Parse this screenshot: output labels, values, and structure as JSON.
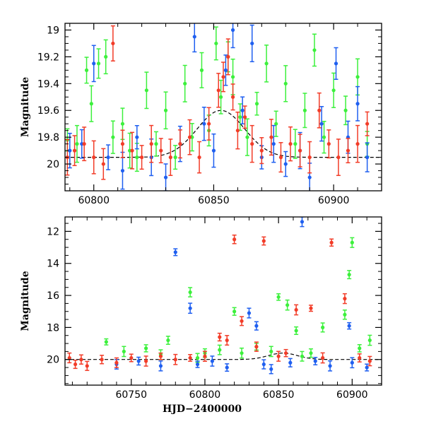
{
  "chart_data": [
    {
      "type": "scatter",
      "title": "",
      "xlabel": "",
      "ylabel": "Magnitude",
      "xlim": [
        60788,
        60920
      ],
      "ylim": [
        20.2,
        18.95
      ],
      "y_inverted": true,
      "xticks": [
        60800,
        60850,
        60900
      ],
      "yticks": [
        19,
        19.2,
        19.4,
        19.6,
        19.8,
        20
      ],
      "grid": false,
      "legend": "none",
      "series": [
        {
          "color": "#3cf03c",
          "marker": "dot with vertical error bar",
          "points": [
            [
              60789,
              19.82
            ],
            [
              60793,
              19.85
            ],
            [
              60797,
              19.3
            ],
            [
              60799,
              19.55
            ],
            [
              60802,
              19.25
            ],
            [
              60805,
              19.2
            ],
            [
              60808,
              19.8
            ],
            [
              60812,
              19.7
            ],
            [
              60815,
              19.9
            ],
            [
              60818,
              19.95
            ],
            [
              60822,
              19.45
            ],
            [
              60826,
              19.85
            ],
            [
              60830,
              19.6
            ],
            [
              60834,
              19.95
            ],
            [
              60838,
              19.4
            ],
            [
              60841,
              19.8
            ],
            [
              60845,
              19.3
            ],
            [
              60848,
              19.75
            ],
            [
              60851,
              19.1
            ],
            [
              60853,
              19.5
            ],
            [
              60856,
              19.2
            ],
            [
              60858,
              19.35
            ],
            [
              60861,
              19.65
            ],
            [
              60864,
              19.8
            ],
            [
              60868,
              19.55
            ],
            [
              60872,
              19.25
            ],
            [
              60876,
              19.7
            ],
            [
              60880,
              19.4
            ],
            [
              60884,
              19.85
            ],
            [
              60888,
              19.6
            ],
            [
              60892,
              19.15
            ],
            [
              60896,
              19.8
            ],
            [
              60900,
              19.45
            ],
            [
              60905,
              19.6
            ],
            [
              60910,
              19.35
            ],
            [
              60914,
              19.85
            ]
          ]
        },
        {
          "color": "#1f5ff0",
          "marker": "dot with vertical error bar",
          "points": [
            [
              60790,
              19.9
            ],
            [
              60795,
              19.85
            ],
            [
              60800,
              19.25
            ],
            [
              60806,
              19.95
            ],
            [
              60812,
              20.05
            ],
            [
              60818,
              19.8
            ],
            [
              60824,
              19.95
            ],
            [
              60830,
              20.1
            ],
            [
              60836,
              19.85
            ],
            [
              60842,
              19.05
            ],
            [
              60846,
              19.7
            ],
            [
              60850,
              19.9
            ],
            [
              60855,
              19.3
            ],
            [
              60858,
              19.0
            ],
            [
              60862,
              19.6
            ],
            [
              60866,
              19.1
            ],
            [
              60870,
              19.95
            ],
            [
              60875,
              19.85
            ],
            [
              60880,
              20.0
            ],
            [
              60886,
              19.9
            ],
            [
              60890,
              20.1
            ],
            [
              60895,
              19.7
            ],
            [
              60901,
              19.25
            ],
            [
              60906,
              19.8
            ],
            [
              60910,
              19.55
            ],
            [
              60914,
              19.95
            ]
          ]
        },
        {
          "color": "#f23c28",
          "marker": "dot with vertical error bar",
          "points": [
            [
              60789,
              19.95
            ],
            [
              60792,
              19.9
            ],
            [
              60796,
              19.85
            ],
            [
              60800,
              19.95
            ],
            [
              60804,
              20.0
            ],
            [
              60808,
              19.1
            ],
            [
              60812,
              19.85
            ],
            [
              60816,
              19.9
            ],
            [
              60820,
              19.95
            ],
            [
              60824,
              19.85
            ],
            [
              60828,
              19.9
            ],
            [
              60832,
              19.95
            ],
            [
              60836,
              19.85
            ],
            [
              60840,
              19.8
            ],
            [
              60844,
              19.95
            ],
            [
              60848,
              19.7
            ],
            [
              60852,
              19.45
            ],
            [
              60854,
              19.35
            ],
            [
              60856,
              19.2
            ],
            [
              60858,
              19.5
            ],
            [
              60860,
              19.75
            ],
            [
              60863,
              19.65
            ],
            [
              60866,
              19.85
            ],
            [
              60870,
              19.9
            ],
            [
              60874,
              19.8
            ],
            [
              60878,
              19.95
            ],
            [
              60882,
              19.85
            ],
            [
              60886,
              19.9
            ],
            [
              60890,
              19.95
            ],
            [
              60894,
              19.6
            ],
            [
              60898,
              19.85
            ],
            [
              60902,
              19.95
            ],
            [
              60906,
              19.9
            ],
            [
              60910,
              19.85
            ],
            [
              60914,
              19.7
            ]
          ]
        }
      ]
    },
    {
      "type": "scatter",
      "title": "",
      "xlabel": "HJD−2400000",
      "ylabel": "Magnitude",
      "xlim": [
        60705,
        60920
      ],
      "ylim": [
        21.6,
        11.1
      ],
      "y_inverted": true,
      "xticks": [
        60750,
        60800,
        60850,
        60900
      ],
      "yticks": [
        12,
        14,
        16,
        18,
        20
      ],
      "grid": false,
      "legend": "none",
      "series": [
        {
          "color": "#3cf03c",
          "marker": "dot with vertical error bar",
          "points": [
            [
              60733,
              18.9
            ],
            [
              60745,
              19.5
            ],
            [
              60760,
              19.3
            ],
            [
              60770,
              19.7
            ],
            [
              60775,
              18.8
            ],
            [
              60790,
              15.8
            ],
            [
              60795,
              19.9
            ],
            [
              60800,
              19.6
            ],
            [
              60810,
              19.4
            ],
            [
              60820,
              17.0
            ],
            [
              60825,
              19.6
            ],
            [
              60835,
              19.2
            ],
            [
              60845,
              19.5
            ],
            [
              60850,
              16.1
            ],
            [
              60856,
              16.6
            ],
            [
              60862,
              18.2
            ],
            [
              60866,
              19.8
            ],
            [
              60872,
              19.6
            ],
            [
              60880,
              18.0
            ],
            [
              60895,
              17.2
            ],
            [
              60898,
              14.7
            ],
            [
              60900,
              12.7
            ],
            [
              60905,
              19.3
            ],
            [
              60912,
              18.8
            ]
          ]
        },
        {
          "color": "#1f5ff0",
          "marker": "dot with vertical error bar",
          "points": [
            [
              60740,
              20.3
            ],
            [
              60755,
              20.1
            ],
            [
              60770,
              20.4
            ],
            [
              60780,
              13.3
            ],
            [
              60790,
              16.8
            ],
            [
              60795,
              20.3
            ],
            [
              60805,
              20.1
            ],
            [
              60815,
              20.5
            ],
            [
              60830,
              17.1
            ],
            [
              60835,
              17.9
            ],
            [
              60840,
              20.3
            ],
            [
              60845,
              20.6
            ],
            [
              60858,
              20.2
            ],
            [
              60866,
              11.4
            ],
            [
              60875,
              20.1
            ],
            [
              60885,
              20.4
            ],
            [
              60898,
              17.9
            ],
            [
              60900,
              20.2
            ],
            [
              60910,
              20.5
            ]
          ]
        },
        {
          "color": "#f23c28",
          "marker": "dot with vertical error bar",
          "points": [
            [
              60708,
              19.9
            ],
            [
              60712,
              20.3
            ],
            [
              60716,
              20.0
            ],
            [
              60720,
              20.4
            ],
            [
              60730,
              20.0
            ],
            [
              60740,
              20.2
            ],
            [
              60750,
              19.9
            ],
            [
              60760,
              20.1
            ],
            [
              60770,
              19.8
            ],
            [
              60780,
              20.0
            ],
            [
              60790,
              19.9
            ],
            [
              60800,
              19.8
            ],
            [
              60810,
              18.6
            ],
            [
              60815,
              18.8
            ],
            [
              60820,
              12.5
            ],
            [
              60825,
              17.6
            ],
            [
              60835,
              19.2
            ],
            [
              60840,
              12.6
            ],
            [
              60850,
              19.8
            ],
            [
              60855,
              19.6
            ],
            [
              60862,
              16.9
            ],
            [
              60872,
              16.8
            ],
            [
              60880,
              19.9
            ],
            [
              60886,
              12.7
            ],
            [
              60895,
              16.2
            ],
            [
              60905,
              19.9
            ],
            [
              60912,
              20.1
            ]
          ]
        }
      ]
    }
  ]
}
